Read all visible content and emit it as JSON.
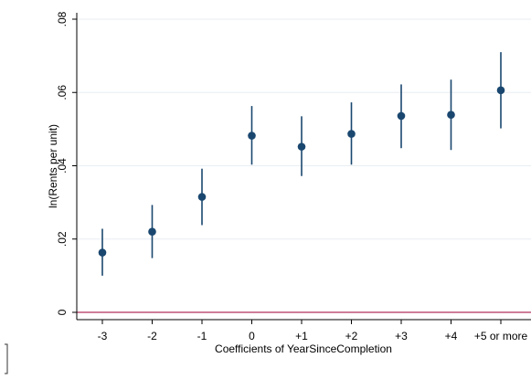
{
  "colors": {
    "background": "#ffffff",
    "gridline": "#e8eef2",
    "axis": "#000000",
    "marker": "#1a476f",
    "reference_line": "#b0305c"
  },
  "chart_data": {
    "type": "scatter",
    "title": "",
    "xlabel": "Coefficients of YearSinceCompletion",
    "ylabel": "ln(Rents per unit)",
    "categories": [
      "-3",
      "-2",
      "-1",
      "0",
      "+1",
      "+2",
      "+3",
      "+4",
      "+5 or more"
    ],
    "series": [
      {
        "values": [
          0.0163,
          0.022,
          0.0315,
          0.0482,
          0.0452,
          0.0487,
          0.0536,
          0.0539,
          0.0606
        ],
        "ci_lower": [
          0.01,
          0.0148,
          0.0238,
          0.0403,
          0.0372,
          0.0403,
          0.0448,
          0.0443,
          0.0502
        ],
        "ci_upper": [
          0.0228,
          0.0293,
          0.0392,
          0.0563,
          0.0535,
          0.0573,
          0.0622,
          0.0635,
          0.071
        ]
      }
    ],
    "yticks": [
      0,
      0.02,
      0.04,
      0.06,
      0.08
    ],
    "ytick_labels": [
      "0",
      ".02",
      ".04",
      ".06",
      ".08"
    ],
    "ylim": [
      -0.0018,
      0.082
    ],
    "reference_line_y": 0,
    "grid": true,
    "marker": "filled-circle",
    "error_bars": "vertical lines"
  }
}
